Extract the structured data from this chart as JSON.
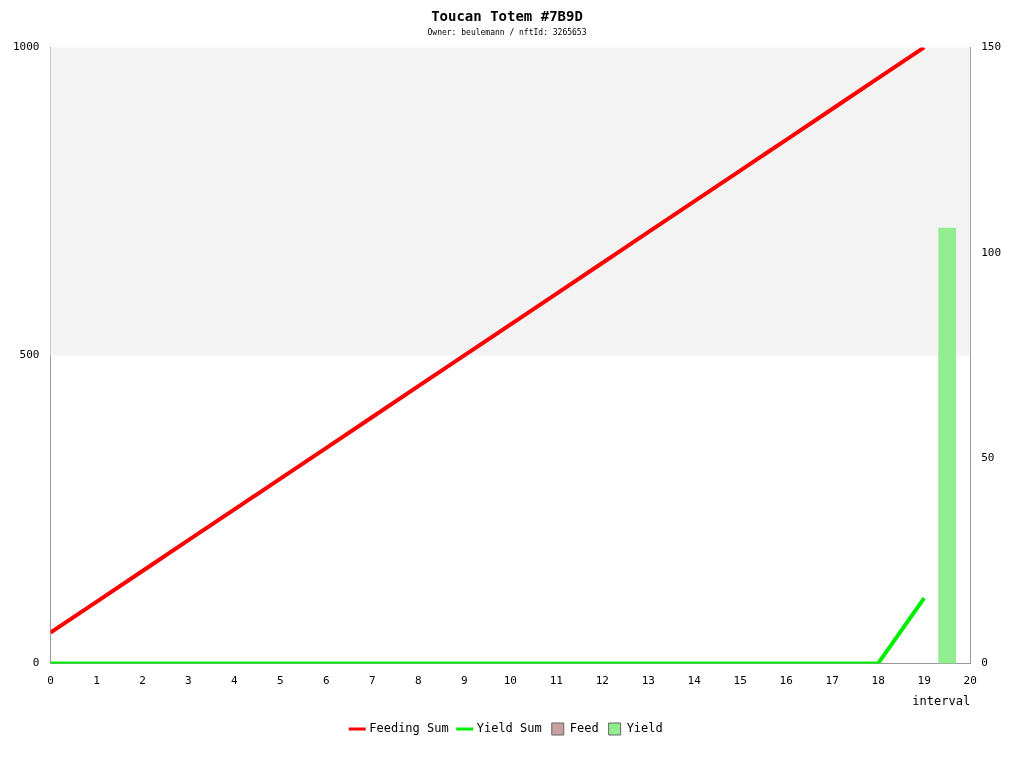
{
  "chart_data": {
    "type": "line",
    "title": "Toucan Totem #7B9D",
    "subtitle": "Owner: beulemann / nftId: 3265653",
    "xlabel": "interval",
    "x": [
      0,
      1,
      2,
      3,
      4,
      5,
      6,
      7,
      8,
      9,
      10,
      11,
      12,
      13,
      14,
      15,
      16,
      17,
      18,
      19
    ],
    "series": [
      {
        "name": "Feeding Sum",
        "color": "#ff0000",
        "values": [
          50,
          100,
          150,
          200,
          250,
          300,
          350,
          400,
          450,
          500,
          550,
          600,
          650,
          700,
          750,
          800,
          850,
          900,
          950,
          1000
        ]
      },
      {
        "name": "Yield Sum",
        "color": "#00ee00",
        "values": [
          0,
          0,
          0,
          0,
          0,
          0,
          0,
          0,
          0,
          0,
          0,
          0,
          0,
          0,
          0,
          0,
          0,
          0,
          0,
          106
        ]
      },
      {
        "name": "Feed",
        "type": "bar",
        "axis": "y2",
        "color": "#c8a0a0",
        "values": [
          null,
          null,
          null,
          null,
          null,
          null,
          null,
          null,
          null,
          null,
          null,
          null,
          null,
          null,
          null,
          null,
          null,
          null,
          null,
          null
        ]
      },
      {
        "name": "Yield",
        "type": "bar",
        "axis": "y2",
        "color": "#90ee90",
        "x": [
          19.5
        ],
        "values": [
          106
        ]
      }
    ],
    "xlim": [
      0,
      20
    ],
    "xticks": [
      0,
      1,
      2,
      3,
      4,
      5,
      6,
      7,
      8,
      9,
      10,
      11,
      12,
      13,
      14,
      15,
      16,
      17,
      18,
      19,
      20
    ],
    "ylim": [
      0,
      1000
    ],
    "yticks": [
      0,
      500,
      1000
    ],
    "y2lim": [
      0,
      150
    ],
    "y2ticks": [
      0,
      50,
      100,
      150
    ],
    "bands": [
      {
        "axis": "y",
        "from": 500,
        "to": 1000,
        "color": "#f3f3f3"
      }
    ],
    "legend": "bottom",
    "marker": "none",
    "line_style": "solid",
    "grid": false
  }
}
